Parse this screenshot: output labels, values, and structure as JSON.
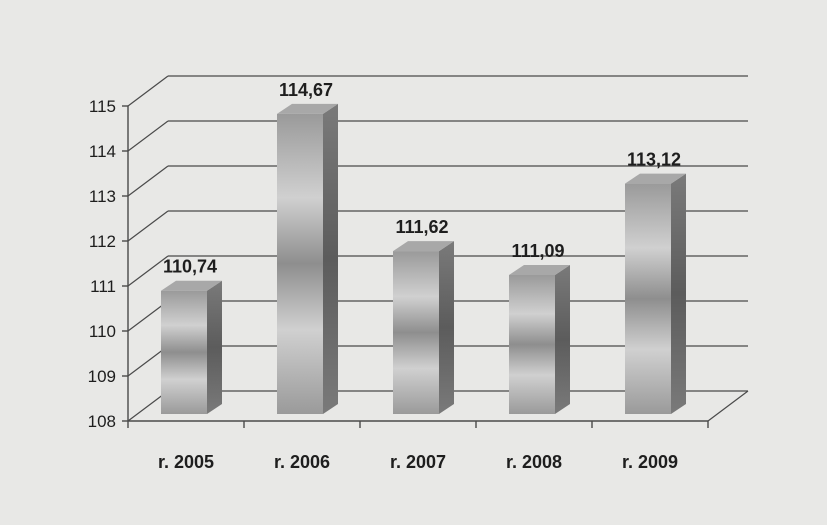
{
  "chart_data": {
    "type": "bar",
    "categories": [
      "r. 2005",
      "r. 2006",
      "r. 2007",
      "r. 2008",
      "r. 2009"
    ],
    "values": [
      110.74,
      114.67,
      111.62,
      111.09,
      113.12
    ],
    "data_labels": [
      "110,74",
      "114,67",
      "111,62",
      "111,09",
      "113,12"
    ],
    "y_ticks": [
      "108",
      "109",
      "110",
      "111",
      "112",
      "113",
      "114",
      "115"
    ],
    "ylim": [
      108,
      115
    ],
    "grid": true,
    "legend": "none",
    "colors": {
      "background": "#e8e8e6",
      "grid": "#4a4a4a",
      "bar_front_light": "#d2d2d2",
      "bar_front_dark": "#8c8c8c",
      "bar_side": "#6e6e6e",
      "bar_top": "#a8a8a8"
    }
  }
}
